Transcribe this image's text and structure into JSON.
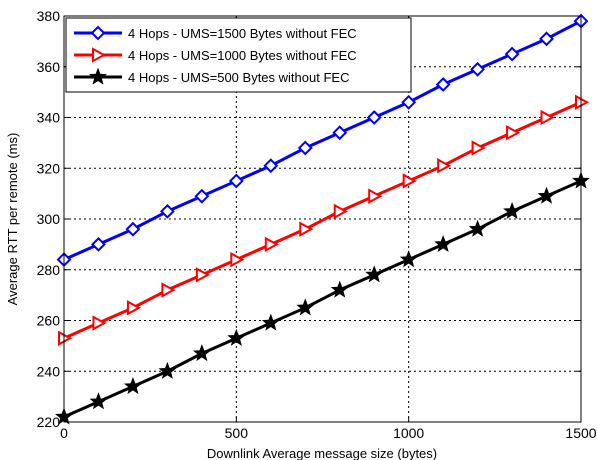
{
  "chart_data": {
    "type": "line",
    "title": "",
    "xlabel": "Downlink Average message size (bytes)",
    "ylabel": "Average RTT per remote (ms)",
    "xlim": [
      0,
      1500
    ],
    "ylim": [
      220,
      380
    ],
    "xticks": [
      0,
      500,
      1000,
      1500
    ],
    "yticks": [
      220,
      240,
      260,
      280,
      300,
      320,
      340,
      360,
      380
    ],
    "grid": true,
    "legend_position": "top-left",
    "x": [
      0,
      100,
      200,
      300,
      400,
      500,
      600,
      700,
      800,
      900,
      1000,
      1100,
      1200,
      1300,
      1400,
      1500
    ],
    "series": [
      {
        "name": "4 Hops - UMS=1500 Bytes without FEC",
        "color": "#0000ff",
        "marker": "diamond",
        "values": [
          284,
          290,
          296,
          303,
          309,
          315,
          321,
          328,
          334,
          340,
          346,
          353,
          359,
          365,
          371,
          378
        ]
      },
      {
        "name": "4 Hops - UMS=1000 Bytes without FEC",
        "color": "#ff0000",
        "marker": "triangle-right",
        "values": [
          253,
          259,
          265,
          272,
          278,
          284,
          290,
          296,
          303,
          309,
          315,
          321,
          328,
          334,
          340,
          346
        ]
      },
      {
        "name": "4 Hops - UMS=500 Bytes  without FEC",
        "color": "#000000",
        "marker": "star",
        "values": [
          222,
          228,
          234,
          240,
          247,
          253,
          259,
          265,
          272,
          278,
          284,
          290,
          296,
          303,
          309,
          315
        ]
      }
    ]
  }
}
